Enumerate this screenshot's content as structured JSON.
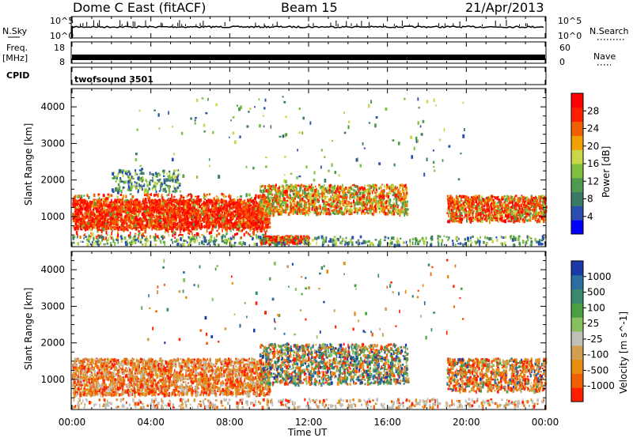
{
  "header": {
    "radar": "Dome C East (fitACF)",
    "beam": "Beam 15",
    "date": "21/Apr/2013"
  },
  "top_panels": {
    "nsky_label": "N.Sky",
    "nsky_ticks": [
      "10^5",
      "10^0"
    ],
    "nsearch_label": "N.Search",
    "nsearch_ticks": [
      "10^5",
      "10^0"
    ],
    "freq_label_1": "Freq.",
    "freq_label_2": "[MHz]",
    "freq_ticks": [
      "18",
      "8"
    ],
    "nave_label": "Nave",
    "nave_ticks": [
      "60",
      "0"
    ],
    "cpid_label": "CPID",
    "cpid_value": "twofsound 3501"
  },
  "colors": {
    "power": [
      "#0000ff",
      "#2a4fb0",
      "#3a7a66",
      "#4f9a4f",
      "#7fc040",
      "#c8d848",
      "#f0a000",
      "#f06000",
      "#ff2000",
      "#ff0000"
    ],
    "velocity_pos": [
      "#1a3aa8",
      "#2a6fa0",
      "#3a8a70",
      "#4aa040",
      "#88c060"
    ],
    "velocity_neg": [
      "#c0c0b8",
      "#d0a050",
      "#e88c10",
      "#f06000",
      "#ff2000"
    ]
  },
  "chart_data": [
    {
      "type": "heatmap",
      "name": "power-panel",
      "ylabel": "Slant Range [km]",
      "colorbar_label": "Power [dB]",
      "colorbar_ticks": [
        "28",
        "24",
        "20",
        "16",
        "12",
        "8",
        "4"
      ],
      "colorbar_range": [
        0,
        32
      ],
      "y_ticks": [
        "4000",
        "3000",
        "2000",
        "1000"
      ],
      "ylim": [
        200,
        4500
      ],
      "xlim": [
        "00:00",
        "24:00"
      ],
      "bands": [
        {
          "t0": "00:00",
          "t1": "10:00",
          "r0": 700,
          "r1": 1500,
          "level": "very strong"
        },
        {
          "t0": "09:30",
          "t1": "12:00",
          "r0": 300,
          "r1": 500,
          "level": "very strong"
        },
        {
          "t0": "02:00",
          "t1": "05:30",
          "r0": 1700,
          "r1": 2300,
          "level": "weak"
        },
        {
          "t0": "09:30",
          "t1": "17:00",
          "r0": 1100,
          "r1": 1900,
          "level": "moderate"
        },
        {
          "t0": "19:00",
          "t1": "24:00",
          "r0": 900,
          "r1": 1600,
          "level": "strong"
        }
      ]
    },
    {
      "type": "heatmap",
      "name": "velocity-panel",
      "ylabel": "Slant Range [km]",
      "xlabel": "Time UT",
      "colorbar_label": "Velocity [m s^-1]",
      "colorbar_ticks": [
        "1000",
        "500",
        "100",
        "25",
        "-25",
        "-100",
        "-500",
        "-1000"
      ],
      "y_ticks": [
        "4000",
        "3000",
        "2000",
        "1000"
      ],
      "ylim": [
        200,
        4500
      ],
      "x_ticks": [
        "00:00",
        "04:00",
        "08:00",
        "12:00",
        "16:00",
        "20:00",
        "00:00"
      ],
      "bands": [
        {
          "t0": "00:00",
          "t1": "10:00",
          "r0": 600,
          "r1": 1600,
          "sign": "negative"
        },
        {
          "t0": "09:30",
          "t1": "17:00",
          "r0": 900,
          "r1": 2000,
          "sign": "mixed"
        },
        {
          "t0": "19:00",
          "t1": "24:00",
          "r0": 700,
          "r1": 1600,
          "sign": "negative"
        }
      ]
    }
  ]
}
